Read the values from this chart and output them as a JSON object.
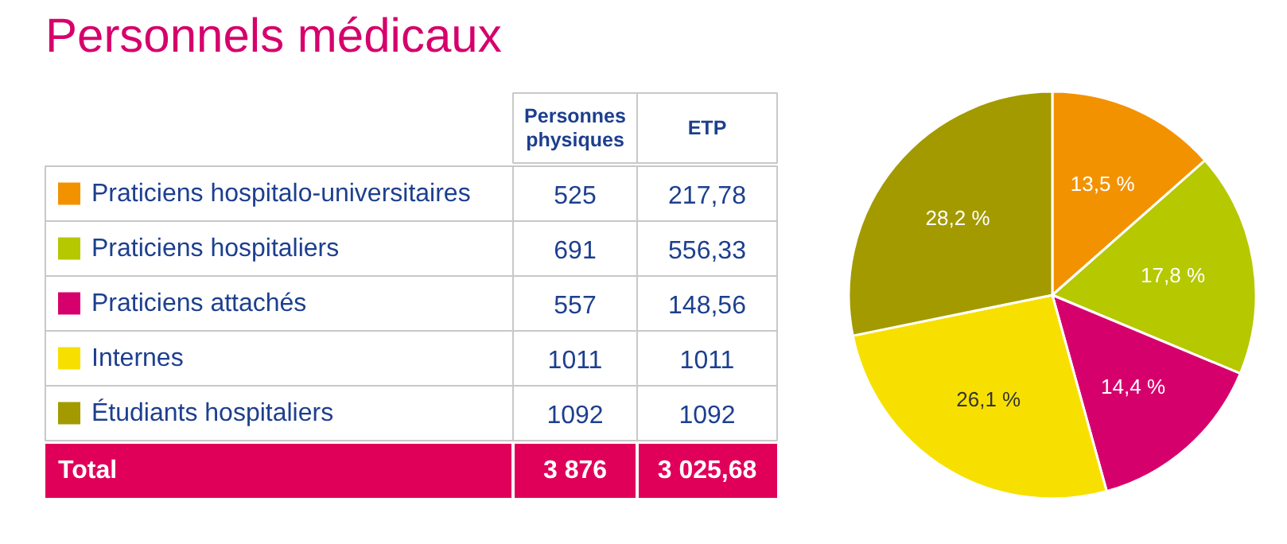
{
  "chart_data": [
    {
      "type": "other",
      "title": "Personnels médicaux",
      "categories": [
        "Praticiens hospitalo-universitaires",
        "Praticiens hospitaliers",
        "Praticiens attachés",
        "Internes",
        "Étudiants hospitaliers"
      ],
      "colors": [
        "#f39200",
        "#b5c800",
        "#d6006c",
        "#f7e000",
        "#a39a00"
      ],
      "series": [
        {
          "name": "Personnes physiques",
          "values": [
            525,
            691,
            557,
            1011,
            1092
          ]
        },
        {
          "name": "ETP",
          "values": [
            217.78,
            556.33,
            148.56,
            1011,
            1092
          ],
          "value_labels": [
            "217,78",
            "556,33",
            "148,56",
            "1011",
            "1092"
          ]
        }
      ],
      "data_labels": true,
      "totals": [
        "3 876",
        "3 025,68"
      ],
      "annotations": [
        "Total"
      ]
    },
    {
      "type": "pie",
      "categories": [
        null,
        null,
        null,
        null,
        null
      ],
      "values": [
        13.5,
        17.8,
        14.4,
        26.1,
        28.2
      ],
      "colors": [
        "#f39200",
        "#b5c800",
        "#d6006c",
        "#f7e000",
        "#a39a00"
      ],
      "value_labels": [
        "13,5 %",
        "17,8 %",
        "14,4 %",
        "26,1 %",
        "28,2 %"
      ]
    }
  ]
}
